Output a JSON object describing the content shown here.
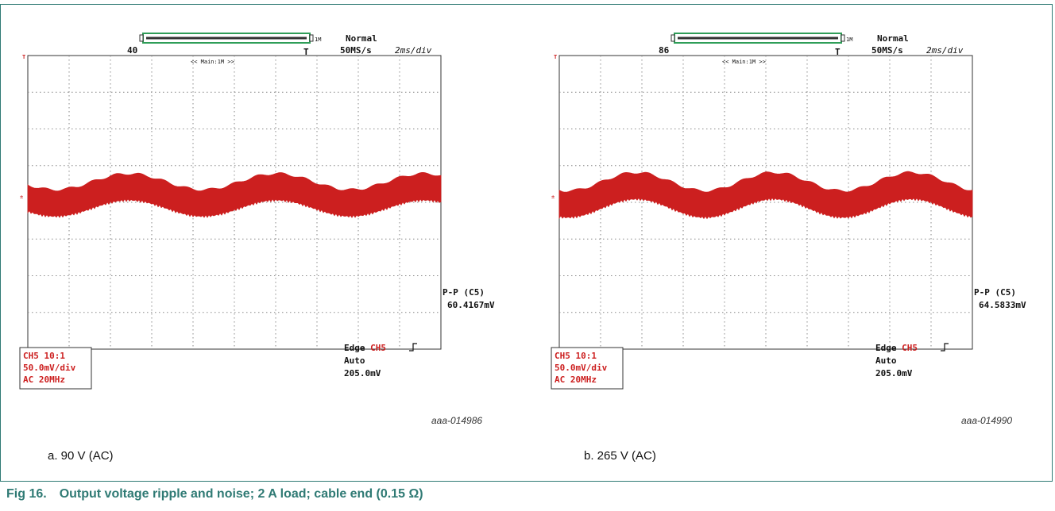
{
  "figure": {
    "label": "Fig 16.",
    "caption": "Output voltage ripple and noise; 2 A load; cable end (0.15 Ω)"
  },
  "colors": {
    "frame": "#2f7a74",
    "trace": "#cc1f1f",
    "grid": "#888888",
    "caption": "#2f7a74"
  },
  "chart_data": [
    {
      "type": "line",
      "sublabel": "a.   90 V (AC)",
      "ref_code": "aaa-014986",
      "top": {
        "mode": "Normal",
        "sample_rate": "50MS/s",
        "timebase": "2ms/div",
        "counter": "40",
        "zoom": "<< Main:1M >>",
        "mem": "1M"
      },
      "trigger_marker": "T",
      "measure": {
        "label": "P-P (C5)",
        "value": "60.4167mV"
      },
      "channel": {
        "line1": "CH5 10:1",
        "line2": "50.0mV/div",
        "line3": "AC   20MHz"
      },
      "trigger": {
        "line1": "Edge",
        "line1_ch": "CH5",
        "line2": "Auto",
        "line3": "205.0mV"
      },
      "divisions": {
        "x": 10,
        "y": 8
      },
      "ripple": {
        "center_div": 3.8,
        "amplitude_div": 0.22,
        "noise_band_div": 0.72,
        "cycles": 2.8,
        "phase": 0.4
      }
    },
    {
      "type": "line",
      "sublabel": "b.   265 V (AC)",
      "ref_code": "aaa-014990",
      "top": {
        "mode": "Normal",
        "sample_rate": "50MS/s",
        "timebase": "2ms/div",
        "counter": "86",
        "zoom": "<< Main:1M >>",
        "mem": "1M"
      },
      "trigger_marker": "T",
      "measure": {
        "label": "P-P (C5)",
        "value": "64.5833mV"
      },
      "channel": {
        "line1": "CH5 10:1",
        "line2": "50.0mV/div",
        "line3": "AC   20MHz"
      },
      "trigger": {
        "line1": "Edge",
        "line1_ch": "CH5",
        "line2": "Auto",
        "line3": "205.0mV"
      },
      "divisions": {
        "x": 10,
        "y": 8
      },
      "ripple": {
        "center_div": 3.8,
        "amplitude_div": 0.25,
        "noise_band_div": 0.72,
        "cycles": 3.0,
        "phase": 1.2
      }
    }
  ]
}
